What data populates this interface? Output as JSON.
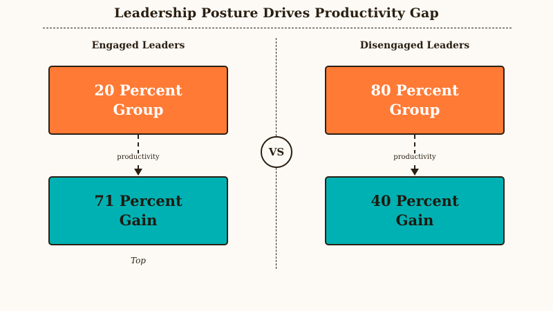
{
  "title": "Leadership Posture Drives Productivity Gap",
  "columns": [
    {
      "heading": "Engaged Leaders",
      "top_box": {
        "line1": "20 Percent",
        "line2": "Group"
      },
      "edge_label": "productivity",
      "bottom_box": {
        "line1": "71 Percent",
        "line2": "Gain"
      },
      "note": "Top"
    },
    {
      "heading": "Disengaged Leaders",
      "top_box": {
        "line1": "80 Percent",
        "line2": "Group"
      },
      "edge_label": "productivity",
      "bottom_box": {
        "line1": "40 Percent",
        "line2": "Gain"
      }
    }
  ],
  "vs_label": "VS",
  "colors": {
    "top_box": "#ff7a35",
    "bottom_box": "#00b1b3",
    "outline": "#2a1f12",
    "background": "#fdfaf6"
  }
}
